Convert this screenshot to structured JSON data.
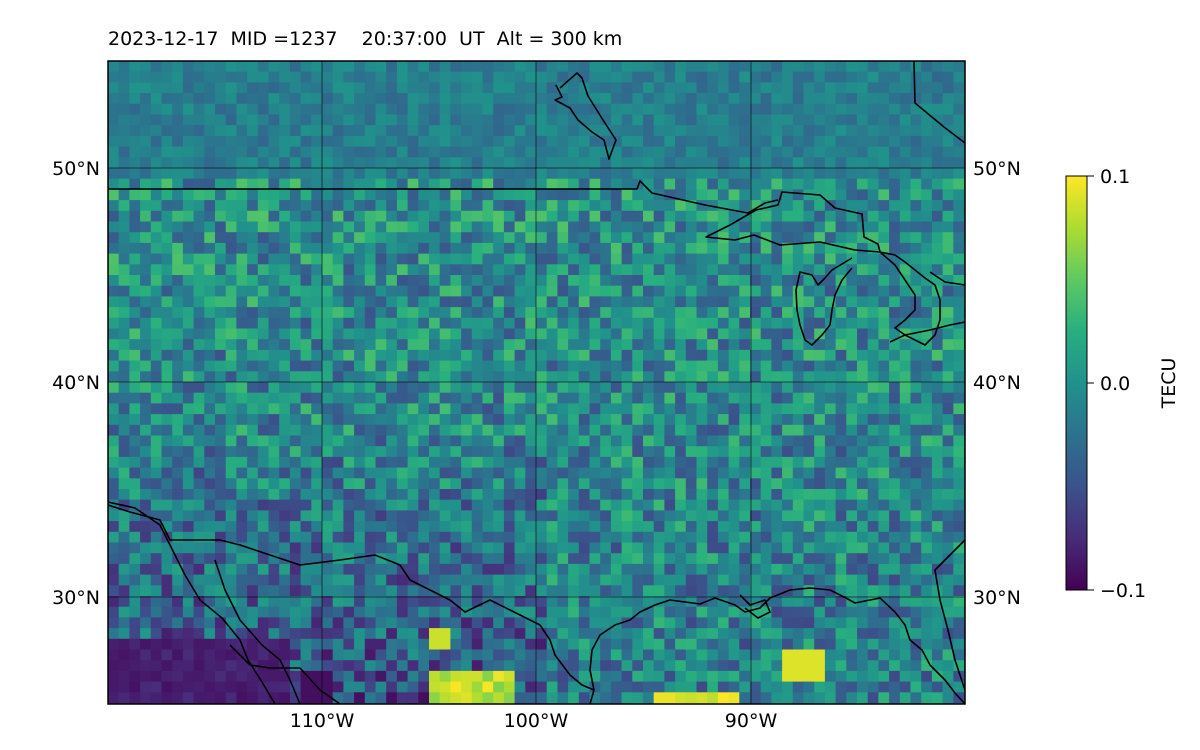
{
  "title": {
    "date": "2023-12-17",
    "mid_text": "MID =1237",
    "time_text": "20:37:00  UT",
    "alt_text": "Alt = 300 km"
  },
  "map": {
    "projection": "cylindrical",
    "lon_range": [
      -120,
      -80
    ],
    "lat_range": [
      25,
      55
    ],
    "grid": true,
    "lat_ticks": [
      {
        "value": 30,
        "label": "30°N"
      },
      {
        "value": 40,
        "label": "40°N"
      },
      {
        "value": 50,
        "label": "50°N"
      }
    ],
    "lon_ticks": [
      {
        "value": -110,
        "label": "110°W"
      },
      {
        "value": -100,
        "label": "100°W"
      },
      {
        "value": -90,
        "label": "90°W"
      }
    ],
    "field": "TEC perturbation (detrended), noisy pixel field; stronger negatives in southwest, positive patches along Gulf coast"
  },
  "colorbar": {
    "label": "TECU",
    "colormap": "viridis",
    "min": -0.1,
    "max": 0.1,
    "ticks": [
      {
        "value": 0.1,
        "label": "0.1"
      },
      {
        "value": 0.0,
        "label": "0.0"
      },
      {
        "value": -0.1,
        "label": "−0.1"
      }
    ]
  },
  "colors": {
    "coastline": "#000000",
    "grid": "#000000",
    "background": "#ffffff"
  }
}
